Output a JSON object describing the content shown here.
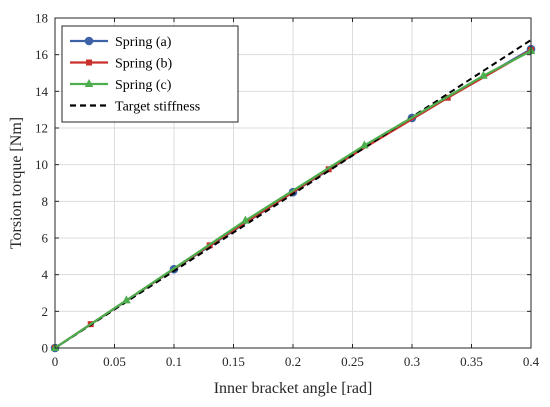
{
  "chart_data": {
    "type": "line",
    "title": "",
    "xlabel": "Inner bracket angle [rad]",
    "ylabel": "Torsion torque [Nm]",
    "xlim": [
      0,
      0.4
    ],
    "ylim": [
      0,
      18
    ],
    "x_ticks": [
      0,
      0.05,
      0.1,
      0.15,
      0.2,
      0.25,
      0.3,
      0.35,
      0.4
    ],
    "x_tick_labels": [
      "0",
      "0.05",
      "0.1",
      "0.15",
      "0.2",
      "0.25",
      "0.3",
      "0.35",
      "0.4"
    ],
    "y_ticks": [
      0,
      2,
      4,
      6,
      8,
      10,
      12,
      14,
      16,
      18
    ],
    "y_tick_labels": [
      "0",
      "2",
      "4",
      "6",
      "8",
      "10",
      "12",
      "14",
      "16",
      "18"
    ],
    "grid": true,
    "legend_position": "top-left",
    "series": [
      {
        "name": "Spring (a)",
        "color": "#3d62a7",
        "marker": "circle",
        "x": [
          0,
          0.1,
          0.2,
          0.3,
          0.4
        ],
        "y": [
          0,
          4.3,
          8.5,
          12.55,
          16.3
        ]
      },
      {
        "name": "Spring (b)",
        "color": "#c9302c",
        "marker": "square",
        "x": [
          0,
          0.03,
          0.13,
          0.23,
          0.33,
          0.4
        ],
        "y": [
          0,
          1.3,
          5.6,
          9.75,
          13.65,
          16.25
        ]
      },
      {
        "name": "Spring (c)",
        "color": "#4cae4c",
        "marker": "triangle",
        "x": [
          0,
          0.06,
          0.16,
          0.26,
          0.36,
          0.4
        ],
        "y": [
          0,
          2.6,
          6.95,
          11.05,
          14.85,
          16.2
        ]
      },
      {
        "name": "Target stiffness",
        "color": "#000000",
        "marker": "none",
        "dashed": true,
        "x": [
          0,
          0.4
        ],
        "y": [
          0,
          16.8
        ]
      }
    ]
  }
}
